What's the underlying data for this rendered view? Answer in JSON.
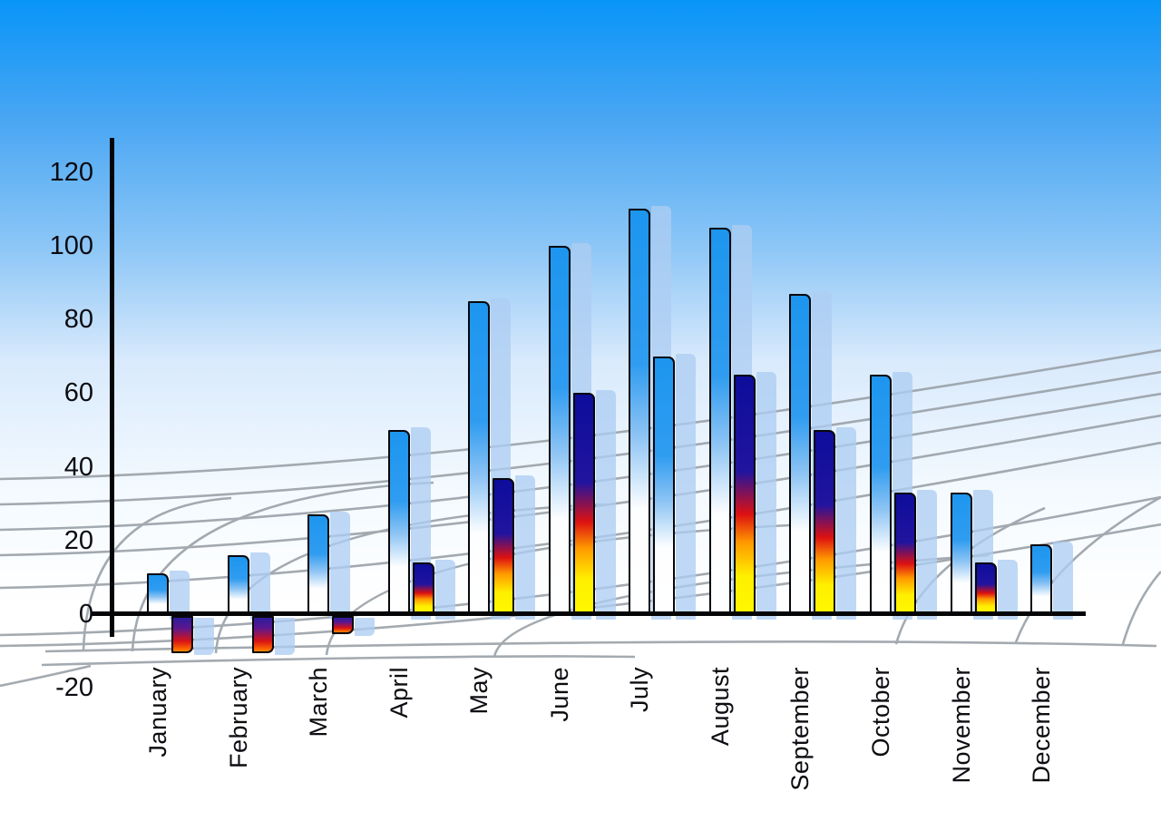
{
  "chart_data": {
    "type": "bar",
    "categories": [
      "January",
      "February",
      "March",
      "April",
      "May",
      "June",
      "July",
      "August",
      "September",
      "October",
      "November",
      "December"
    ],
    "series": [
      {
        "name": "primary-blue-bars",
        "values": [
          11,
          16,
          27,
          50,
          85,
          100,
          110,
          105,
          87,
          65,
          33,
          19
        ]
      },
      {
        "name": "secondary-fire-bars",
        "values": [
          -10,
          -10,
          -5,
          14,
          37,
          60,
          70,
          65,
          50,
          33,
          14,
          null
        ],
        "point_styles": [
          "fire",
          "fire",
          "fire",
          "fire",
          "fire",
          "fire",
          "blue",
          "fire",
          "fire",
          "fire",
          "fire",
          null
        ]
      }
    ],
    "ylim": [
      -20,
      120
    ],
    "ytick_step": 20,
    "yticks": [
      120,
      100,
      80,
      60,
      40,
      20,
      0,
      -20
    ],
    "grid": "perspective-floor-mesh",
    "legend": "none",
    "title": ""
  },
  "colors": {
    "sky_top": "#0895f8",
    "sky_bottom": "#ffffff",
    "bar_blue_top": "#1d96ef",
    "bar_blue_bottom": "#ffffff",
    "fire_navy": "#0d0d9b",
    "fire_red": "#dd1111",
    "fire_yellow": "#ffef00",
    "bar_outline": "#07070c",
    "shadow_bar": "#adcdf2",
    "grid_line": "#9aa1a8",
    "axis_line": "#050507",
    "label_text": "#0c0c12"
  }
}
